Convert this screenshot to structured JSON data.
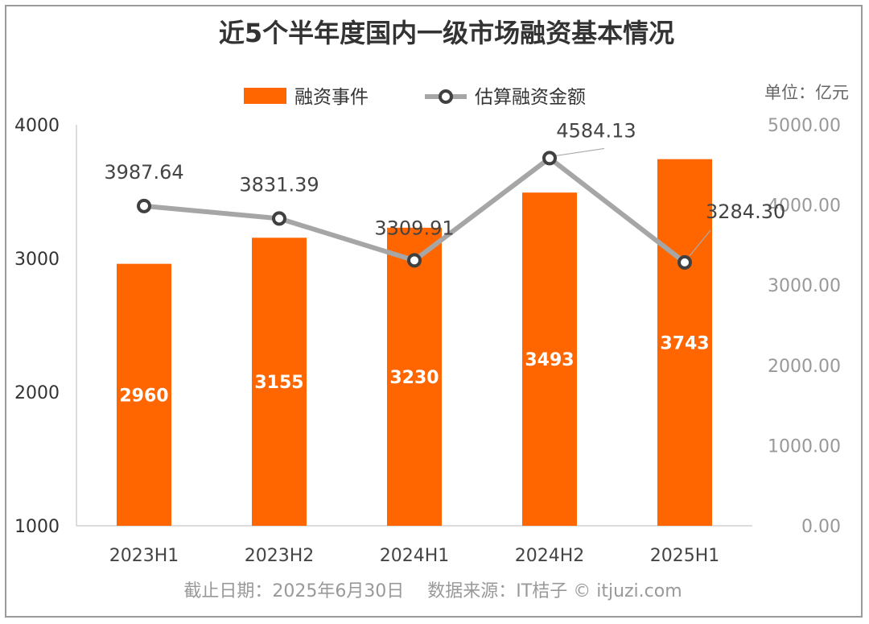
{
  "chart_data": {
    "type": "bar",
    "title": "近5个半年度国内一级市场融资基本情况",
    "categories": [
      "2023H1",
      "2023H2",
      "2024H1",
      "2024H2",
      "2025H1"
    ],
    "series": [
      {
        "name": "融资事件",
        "type": "bar",
        "axis": "left",
        "values": [
          2960,
          3155,
          3230,
          3493,
          3743
        ],
        "color": "#FF6600"
      },
      {
        "name": "估算融资金额",
        "type": "line",
        "axis": "right",
        "values": [
          3987.64,
          3831.39,
          3309.91,
          4584.13,
          3284.3
        ],
        "labels": [
          "3987.64",
          "3831.39",
          "3309.91",
          "4584.13",
          "3284.30"
        ],
        "color": "#A6A6A6"
      }
    ],
    "left_axis": {
      "ylim": [
        1000,
        4000
      ],
      "ticks": [
        "4000",
        "3000",
        "2000",
        "1000"
      ],
      "tick_values": [
        4000,
        3000,
        2000,
        1000
      ]
    },
    "right_axis": {
      "ylim": [
        0,
        5000
      ],
      "ticks": [
        "5000.00",
        "4000.00",
        "3000.00",
        "2000.00",
        "1000.00",
        "0.00"
      ],
      "tick_values": [
        5000,
        4000,
        3000,
        2000,
        1000,
        0
      ]
    },
    "unit_label": "单位：亿元",
    "legend_placement": "top-center",
    "grid": false
  },
  "footer": "截止日期：2025年6月30日　 数据来源：IT桔子 © itjuzi.com"
}
